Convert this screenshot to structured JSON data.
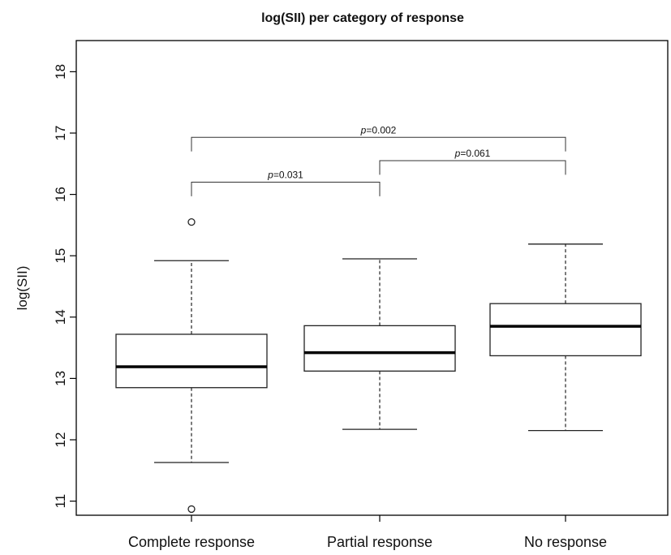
{
  "chart_data": {
    "type": "box",
    "title": "log(SII) per category of response",
    "xlabel": "",
    "ylabel": "log(SII)",
    "ylim": [
      10.7,
      18.2
    ],
    "yticks": [
      11,
      12,
      13,
      14,
      15,
      16,
      17,
      18
    ],
    "categories": [
      "Complete response",
      "Partial response",
      "No response"
    ],
    "boxes": [
      {
        "category": "Complete response",
        "whisker_low": 11.63,
        "q1": 12.85,
        "median": 13.19,
        "q3": 13.72,
        "whisker_high": 14.92,
        "outliers": [
          15.55,
          10.87
        ]
      },
      {
        "category": "Partial response",
        "whisker_low": 12.17,
        "q1": 13.12,
        "median": 13.42,
        "q3": 13.86,
        "whisker_high": 14.95,
        "outliers": []
      },
      {
        "category": "No response",
        "whisker_low": 12.15,
        "q1": 13.37,
        "median": 13.85,
        "q3": 14.22,
        "whisker_high": 15.19,
        "outliers": []
      }
    ],
    "comparisons": [
      {
        "from": 0,
        "to": 1,
        "y": 15.97,
        "drop": 16.2,
        "label_italic": "p",
        "label_rest": "=0.031"
      },
      {
        "from": 1,
        "to": 2,
        "y": 16.32,
        "drop": 16.55,
        "label_italic": "p",
        "label_rest": "=0.061"
      },
      {
        "from": 0,
        "to": 2,
        "y": 16.7,
        "drop": 16.93,
        "label_italic": "p",
        "label_rest": "=0.002"
      }
    ],
    "grid": false,
    "legend": "none"
  }
}
